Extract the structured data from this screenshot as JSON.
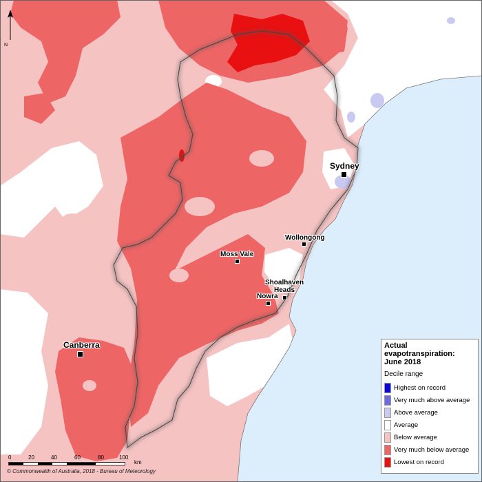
{
  "legend": {
    "title_line1": "Actual",
    "title_line2": "evapotranspiration:",
    "title_line3": "June 2018",
    "subtitle": "Decile range",
    "items": [
      {
        "label": "Highest on record",
        "color": "#0a0ad6"
      },
      {
        "label": "Very much above average",
        "color": "#6c6ce0"
      },
      {
        "label": "Above average",
        "color": "#c9c9f2"
      },
      {
        "label": "Average",
        "color": "#ffffff"
      },
      {
        "label": "Below average",
        "color": "#f6c3c3"
      },
      {
        "label": "Very much below average",
        "color": "#ee6565"
      },
      {
        "label": "Lowest on record",
        "color": "#e81010"
      }
    ]
  },
  "places": {
    "sydney": "Sydney",
    "wollongong": "Wollongong",
    "moss_vale": "Moss Vale",
    "shoalhaven_1": "Shoalhaven",
    "shoalhaven_2": "Heads",
    "nowra": "Nowra",
    "canberra": "Canberra"
  },
  "scale": {
    "ticks": [
      "0",
      "20",
      "40",
      "60",
      "80",
      "100"
    ],
    "unit": "km"
  },
  "north_label": "N",
  "copyright": "© Commonwealth of Australia, 2018 - Bureau of Meteorology",
  "colors": {
    "ocean": "#dceefc",
    "average": "#ffffff",
    "below": "#f6c3c3",
    "very_below": "#ee6565",
    "lowest": "#e81010",
    "above": "#c9c9f2",
    "very_above": "#6c6ce0"
  }
}
